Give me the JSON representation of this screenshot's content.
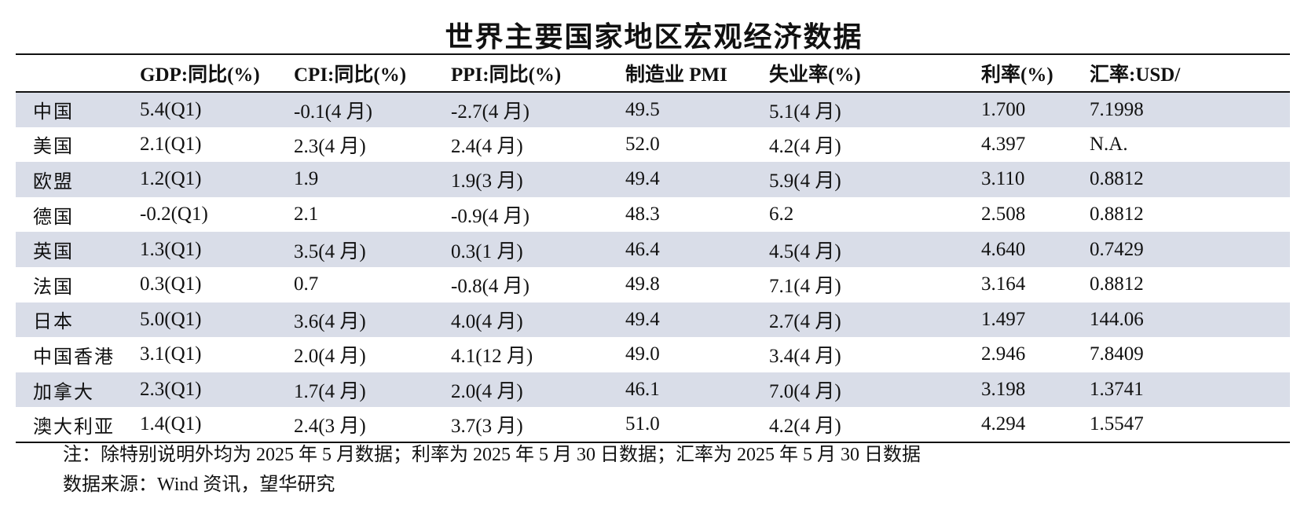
{
  "title": "世界主要国家地区宏观经济数据",
  "table": {
    "headers": [
      "",
      "GDP:同比(%)",
      "CPI:同比(%)",
      "PPI:同比(%)",
      "制造业 PMI",
      "失业率(%)",
      "利率(%)",
      "汇率:USD/"
    ],
    "rows": [
      [
        "中国",
        "5.4(Q1)",
        "-0.1(4 月)",
        "-2.7(4 月)",
        "49.5",
        "5.1(4 月)",
        "1.700",
        "7.1998"
      ],
      [
        "美国",
        "2.1(Q1)",
        "2.3(4 月)",
        "2.4(4 月)",
        "52.0",
        "4.2(4 月)",
        "4.397",
        "N.A."
      ],
      [
        "欧盟",
        "1.2(Q1)",
        "1.9",
        "1.9(3 月)",
        "49.4",
        "5.9(4 月)",
        "3.110",
        "0.8812"
      ],
      [
        "德国",
        "-0.2(Q1)",
        "2.1",
        "-0.9(4 月)",
        "48.3",
        "6.2",
        "2.508",
        "0.8812"
      ],
      [
        "英国",
        "1.3(Q1)",
        "3.5(4 月)",
        "0.3(1 月)",
        "46.4",
        "4.5(4 月)",
        "4.640",
        "0.7429"
      ],
      [
        "法国",
        "0.3(Q1)",
        "0.7",
        "-0.8(4 月)",
        "49.8",
        "7.1(4 月)",
        "3.164",
        "0.8812"
      ],
      [
        "日本",
        "5.0(Q1)",
        "3.6(4 月)",
        "4.0(4 月)",
        "49.4",
        "2.7(4 月)",
        "1.497",
        "144.06"
      ],
      [
        "中国香港",
        "3.1(Q1)",
        "2.0(4 月)",
        "4.1(12 月)",
        "49.0",
        "3.4(4 月)",
        "2.946",
        "7.8409"
      ],
      [
        "加拿大",
        "2.3(Q1)",
        "1.7(4 月)",
        "2.0(4 月)",
        "46.1",
        "7.0(4 月)",
        "3.198",
        "1.3741"
      ],
      [
        "澳大利亚",
        "1.4(Q1)",
        "2.4(3 月)",
        "3.7(3 月)",
        "51.0",
        "4.2(4 月)",
        "4.294",
        "1.5547"
      ]
    ]
  },
  "notes": {
    "line1": "注：除特别说明外均为 2025 年 5 月数据；利率为 2025 年 5 月 30 日数据；汇率为 2025 年 5 月 30 日数据",
    "line2": "数据来源：Wind 资讯，望华研究"
  },
  "colors": {
    "shaded_row": "#d9dde8",
    "rule": "#111111"
  }
}
